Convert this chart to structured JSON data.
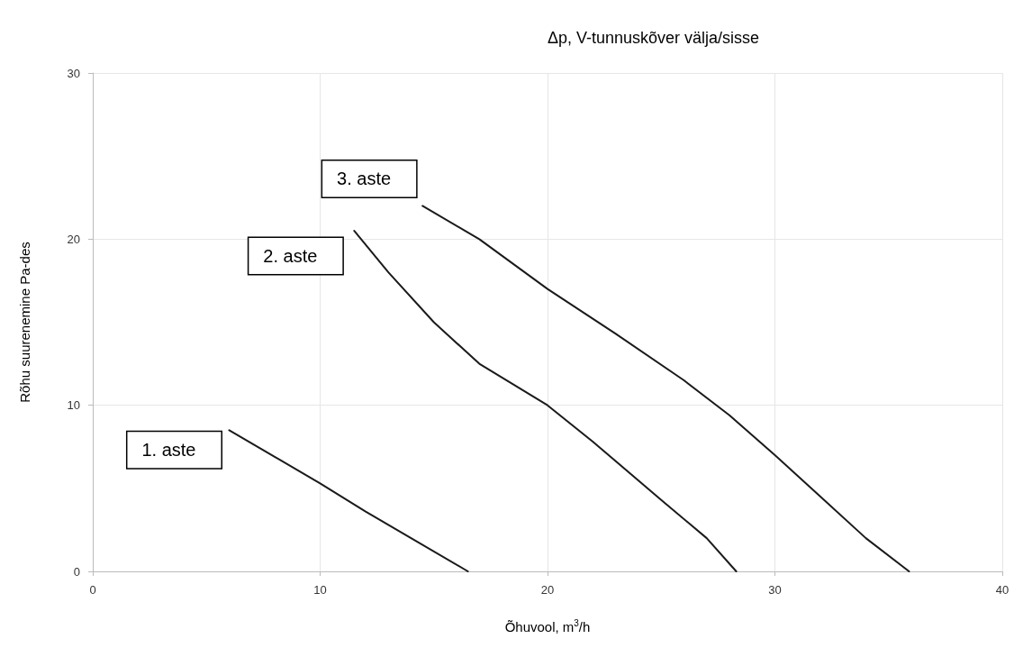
{
  "chart_data": {
    "type": "line",
    "title": "Δp, V-tunnuskõver välja/sisse",
    "xlabel": "Õhuvool, m$^{3}$/h",
    "ylabel": "Rõhu suurenemine Pa-des",
    "xlim": [
      0,
      40
    ],
    "xticks": [
      0,
      10,
      20,
      30,
      40
    ],
    "ylim": [
      0,
      30
    ],
    "yticks": [
      0,
      10,
      20,
      30
    ],
    "grid": true,
    "marker": "none",
    "line_style": "solid",
    "series": [
      {
        "name": "1. aste",
        "color": "#1a1a1a",
        "x": [
          6,
          8,
          10,
          12,
          14,
          16.5
        ],
        "values": [
          8.5,
          6.9,
          5.3,
          3.6,
          2,
          0
        ]
      },
      {
        "name": "2. aste",
        "color": "#1a1a1a",
        "x": [
          11.5,
          13,
          15,
          17,
          20,
          22,
          25,
          27,
          28.3
        ],
        "values": [
          20.5,
          18,
          15,
          12.5,
          10,
          7.8,
          4.3,
          2,
          0
        ]
      },
      {
        "name": "3. aste",
        "color": "#1a1a1a",
        "x": [
          14.5,
          17,
          20,
          23,
          26,
          28,
          30,
          32,
          34,
          35.9
        ],
        "values": [
          22,
          20,
          17,
          14.3,
          11.5,
          9.4,
          7,
          4.5,
          2,
          0
        ]
      }
    ]
  }
}
